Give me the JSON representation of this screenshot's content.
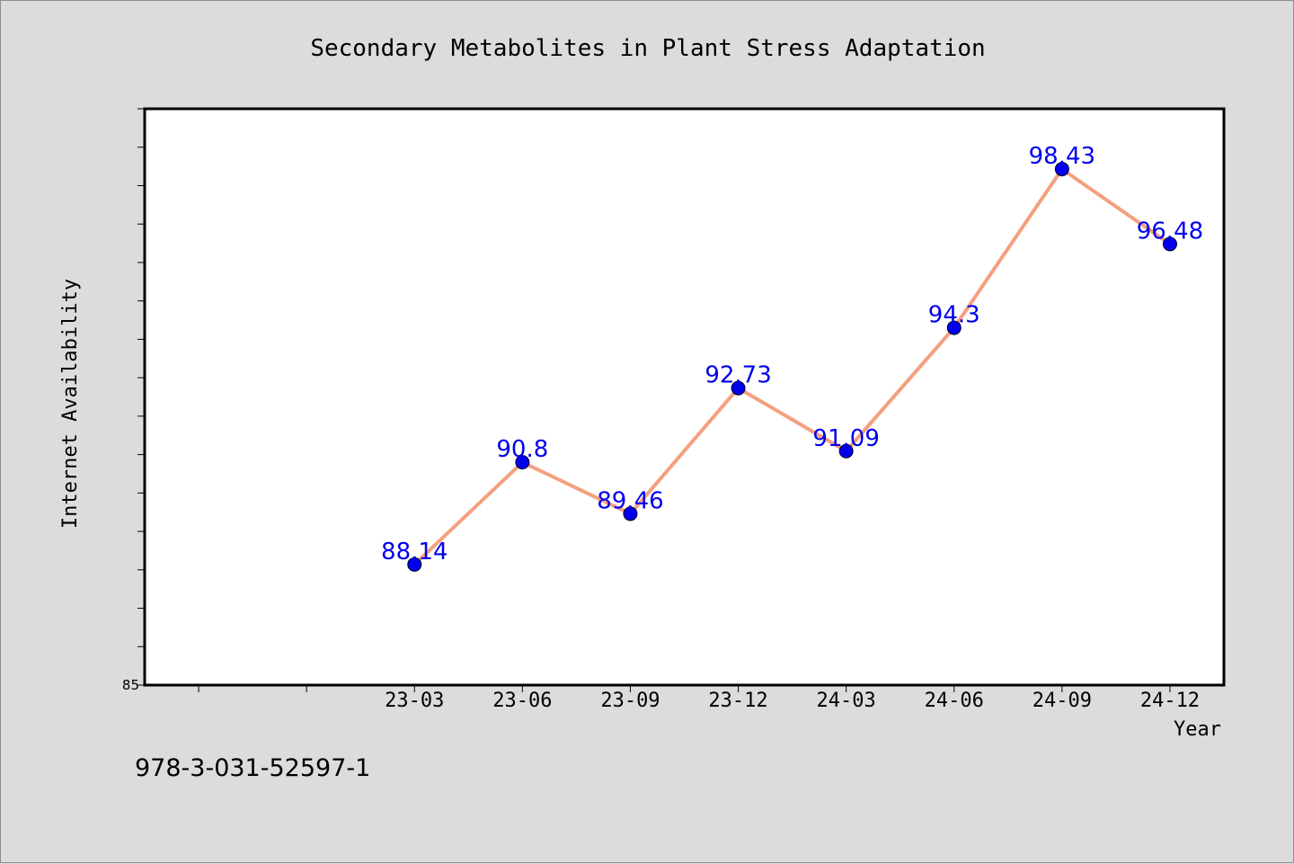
{
  "chart_data": {
    "type": "line",
    "title": "Secondary Metabolites in Plant Stress Adaptation",
    "xlabel": "Year",
    "ylabel": "Internet Availability",
    "categories": [
      "23-03",
      "23-06",
      "23-09",
      "23-12",
      "24-03",
      "24-06",
      "24-09",
      "24-12"
    ],
    "series": [
      {
        "values": [
          88.14,
          90.8,
          89.46,
          92.73,
          91.09,
          94.3,
          98.43,
          96.48
        ],
        "data_labels": [
          "88.14",
          "90.8",
          "89.46",
          "92.73",
          "91.09",
          "94.3",
          "98.43",
          "96.48"
        ]
      }
    ],
    "ylim": [
      85,
      100
    ],
    "y_tick_labels": [
      {
        "value": 85,
        "label": "85"
      }
    ],
    "y_minor_step": 1,
    "x_slots_before_first": 2,
    "grid": false,
    "legend": "none",
    "colors": {
      "line": "#f4a07e",
      "marker": "#0000ee",
      "data_label": "#0000ee",
      "plot_bg": "#ffffff",
      "page_bg": "#dcdcdc"
    }
  },
  "footnote": "978-3-031-52597-1"
}
